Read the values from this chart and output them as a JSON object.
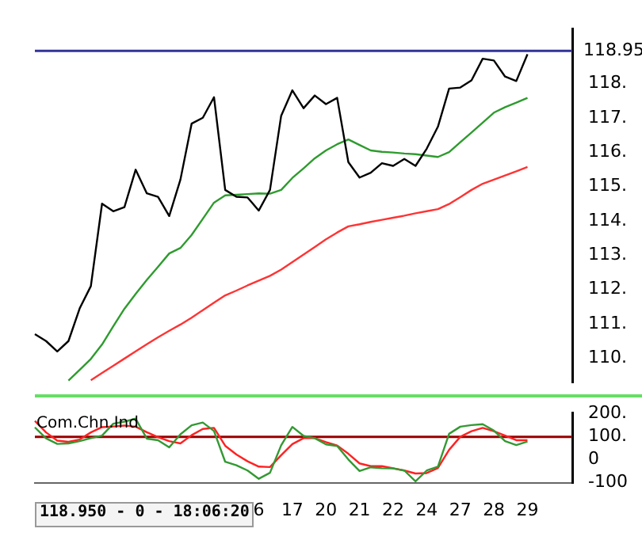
{
  "chart_data": [
    {
      "type": "line",
      "marker": "none",
      "tick_labels": "y",
      "ylim": [
        109.3,
        119.6
      ],
      "categories": [
        null,
        null,
        null,
        null,
        null,
        null,
        null,
        null,
        null,
        null,
        null,
        null,
        null,
        null,
        null,
        null,
        null,
        null,
        null,
        null,
        "6",
        null,
        null,
        "17",
        null,
        null,
        "20",
        null,
        null,
        "21",
        null,
        null,
        "22",
        null,
        null,
        "24",
        null,
        null,
        "27",
        null,
        null,
        "28",
        null,
        null,
        "29",
        null,
        null,
        null,
        null
      ],
      "yticks": [
        {
          "value": 110,
          "label": "110."
        },
        {
          "value": 111,
          "label": "111."
        },
        {
          "value": 112,
          "label": "112."
        },
        {
          "value": 113,
          "label": "113."
        },
        {
          "value": 114,
          "label": "114."
        },
        {
          "value": 115,
          "label": "115."
        },
        {
          "value": 116,
          "label": "116."
        },
        {
          "value": 117,
          "label": "117."
        },
        {
          "value": 118,
          "label": "118."
        }
      ],
      "ref_lines": [
        {
          "axis": "y",
          "value": 118.95,
          "label": "118.95",
          "color": "#333399"
        }
      ],
      "series": [
        {
          "color": "#000000",
          "values": [
            110.7,
            110.5,
            110.2,
            110.5,
            111.45,
            112.1,
            114.5,
            114.28,
            114.4,
            115.49,
            114.8,
            114.7,
            114.14,
            115.2,
            116.83,
            117.0,
            117.6,
            114.9,
            114.7,
            114.68,
            114.3,
            114.9,
            117.06,
            117.8,
            117.28,
            117.65,
            117.4,
            117.58,
            115.71,
            115.26,
            115.4,
            115.68,
            115.6,
            115.8,
            115.6,
            116.1,
            116.74,
            117.85,
            117.88,
            118.09,
            118.72,
            118.67,
            118.2,
            118.07,
            118.85,
            null,
            null,
            null,
            null
          ]
        },
        {
          "color": "#2e9b2e",
          "values": [
            null,
            null,
            null,
            109.35,
            109.66,
            109.98,
            110.4,
            110.93,
            111.44,
            111.87,
            112.28,
            112.66,
            113.05,
            113.21,
            113.59,
            114.06,
            114.53,
            114.74,
            114.76,
            114.78,
            114.8,
            114.79,
            114.9,
            115.25,
            115.53,
            115.82,
            116.05,
            116.23,
            116.37,
            116.21,
            116.05,
            116.01,
            115.99,
            115.96,
            115.94,
            115.9,
            115.86,
            116.0,
            116.29,
            116.57,
            116.86,
            117.15,
            117.31,
            117.44,
            117.58,
            null,
            null,
            null,
            null
          ]
        },
        {
          "color": "#ff3333",
          "values": [
            null,
            null,
            null,
            null,
            null,
            109.36,
            109.57,
            109.78,
            109.99,
            110.2,
            110.41,
            110.61,
            110.8,
            110.98,
            111.18,
            111.4,
            111.62,
            111.83,
            111.97,
            112.12,
            112.26,
            112.4,
            112.58,
            112.8,
            113.02,
            113.24,
            113.46,
            113.66,
            113.84,
            113.9,
            113.97,
            114.03,
            114.09,
            114.15,
            114.22,
            114.28,
            114.34,
            114.49,
            114.69,
            114.9,
            115.08,
            115.2,
            115.32,
            115.44,
            115.57,
            null,
            null,
            null,
            null
          ]
        }
      ]
    },
    {
      "type": "line",
      "title": "Com.Chn.Ind",
      "marker": "none",
      "ylim": [
        -100,
        205
      ],
      "categories": [
        null,
        null,
        null,
        null,
        null,
        null,
        null,
        null,
        null,
        null,
        null,
        null,
        null,
        null,
        null,
        null,
        null,
        null,
        null,
        null,
        "6",
        null,
        null,
        "17",
        null,
        null,
        "20",
        null,
        null,
        "21",
        null,
        null,
        "22",
        null,
        null,
        "24",
        null,
        null,
        "27",
        null,
        null,
        "28",
        null,
        null,
        "29",
        null,
        null,
        null,
        null
      ],
      "yticks": [
        {
          "value": 200,
          "label": "200."
        },
        {
          "value": 100,
          "label": "100."
        },
        0,
        -100
      ],
      "ref_lines": [
        {
          "axis": "y",
          "value": 100,
          "color": "#990000"
        }
      ],
      "annotations": [
        "118.950 - 0 - 18:06:20"
      ],
      "series": [
        {
          "color": "#339933",
          "values": [
            141,
            93,
            69,
            71,
            81,
            94,
            105,
            157,
            166,
            179,
            92,
            85,
            54,
            111,
            150,
            162,
            125,
            -9,
            -24,
            -47,
            -83,
            -57,
            63,
            143,
            104,
            94,
            67,
            60,
            1,
            -49,
            -33,
            -37,
            -38,
            -47,
            -94,
            -47,
            -30,
            113,
            144,
            151,
            155,
            127,
            81,
            64,
            79,
            null,
            null,
            null,
            null
          ]
        },
        {
          "color": "#ff2222",
          "values": [
            169,
            119,
            83,
            78,
            88,
            119,
            142,
            145,
            149,
            144,
            120,
            98,
            81,
            71,
            107,
            134,
            139,
            61,
            23,
            -7,
            -30,
            -32,
            20,
            68,
            94,
            94,
            77,
            62,
            26,
            -16,
            -28,
            -28,
            -37,
            -47,
            -60,
            -58,
            -36,
            43,
            100,
            124,
            139,
            124,
            105,
            85,
            85,
            null,
            null,
            null,
            null
          ]
        }
      ]
    }
  ]
}
